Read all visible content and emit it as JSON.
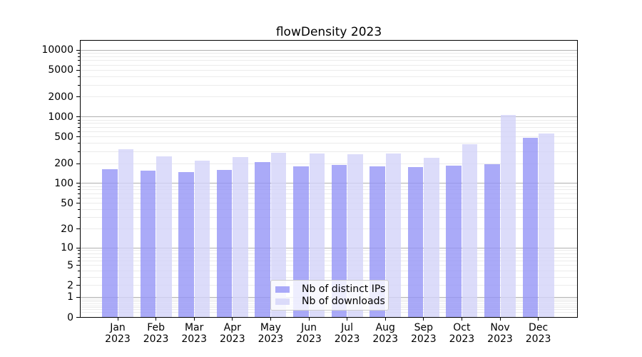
{
  "chart_data": {
    "type": "bar",
    "title": "flowDensity 2023",
    "categories": [
      "Jan 2023",
      "Feb 2023",
      "Mar 2023",
      "Apr 2023",
      "May 2023",
      "Jun 2023",
      "Jul 2023",
      "Aug 2023",
      "Sep 2023",
      "Oct 2023",
      "Nov 2023",
      "Dec 2023"
    ],
    "series": [
      {
        "name": "Nb of distinct IPs",
        "color": "#9595f6",
        "values": [
          165,
          157,
          150,
          162,
          208,
          180,
          191,
          183,
          176,
          188,
          196,
          482
        ]
      },
      {
        "name": "Nb of downloads",
        "color": "#d3d3f9",
        "values": [
          325,
          257,
          222,
          250,
          292,
          285,
          277,
          280,
          243,
          390,
          1060,
          570
        ]
      }
    ],
    "bar_alpha": 0.8,
    "yscale": "log1p",
    "y_tick_labels": [
      "10000",
      "5000",
      "2000",
      "1000",
      "500",
      "200",
      "100",
      "50",
      "20",
      "10",
      "5",
      "2",
      "1",
      "0"
    ],
    "ylim": [
      0,
      14000
    ],
    "grid": true,
    "legend_position": "lower center",
    "xlabel": "",
    "ylabel": ""
  },
  "colors": {
    "bar_distinct_ips": "#9595f6",
    "bar_downloads": "#d3d3f9",
    "grid_minor": "#ebebeb",
    "grid_major": "#b0b0b0",
    "spine": "#000000",
    "text": "#000000",
    "legend_border": "#cccccc",
    "legend_bg": "rgba(255,255,255,0.8)"
  }
}
